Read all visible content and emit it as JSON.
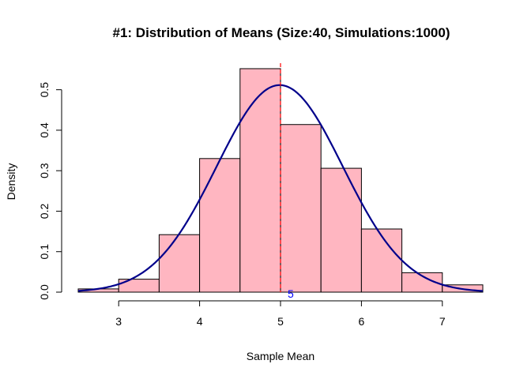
{
  "chart_data": {
    "type": "histogram",
    "title": "#1: Distribution of Means (Size:40, Simulations:1000)",
    "xlabel": "Sample Mean",
    "ylabel": "Density",
    "xlim": [
      2.5,
      7.5
    ],
    "ylim": [
      0,
      0.55
    ],
    "x_ticks": [
      3,
      4,
      5,
      6,
      7
    ],
    "y_ticks": [
      0.0,
      0.1,
      0.2,
      0.3,
      0.4,
      0.5
    ],
    "y_tick_labels": [
      "0.0",
      "0.1",
      "0.2",
      "0.3",
      "0.4",
      "0.5"
    ],
    "bins": [
      {
        "from": 2.5,
        "to": 3.0,
        "density": 0.008
      },
      {
        "from": 3.0,
        "to": 3.5,
        "density": 0.032
      },
      {
        "from": 3.5,
        "to": 4.0,
        "density": 0.142
      },
      {
        "from": 4.0,
        "to": 4.5,
        "density": 0.33
      },
      {
        "from": 4.5,
        "to": 5.0,
        "density": 0.552
      },
      {
        "from": 5.0,
        "to": 5.5,
        "density": 0.414
      },
      {
        "from": 5.5,
        "to": 6.0,
        "density": 0.306
      },
      {
        "from": 6.0,
        "to": 6.5,
        "density": 0.156
      },
      {
        "from": 6.5,
        "to": 7.0,
        "density": 0.048
      },
      {
        "from": 7.0,
        "to": 7.5,
        "density": 0.018
      }
    ],
    "density_curve": {
      "type": "normal",
      "mean": 4.99,
      "sd": 0.78
    },
    "reference_line": {
      "x": 5
    },
    "annotation": {
      "text": "5",
      "x": 5,
      "y": 0
    },
    "colors": {
      "bar_fill": "#ffb6c1",
      "bar_stroke": "#000000",
      "curve": "#00008b",
      "reference_line": "#ff0000",
      "annotation": "#0000ff"
    }
  }
}
